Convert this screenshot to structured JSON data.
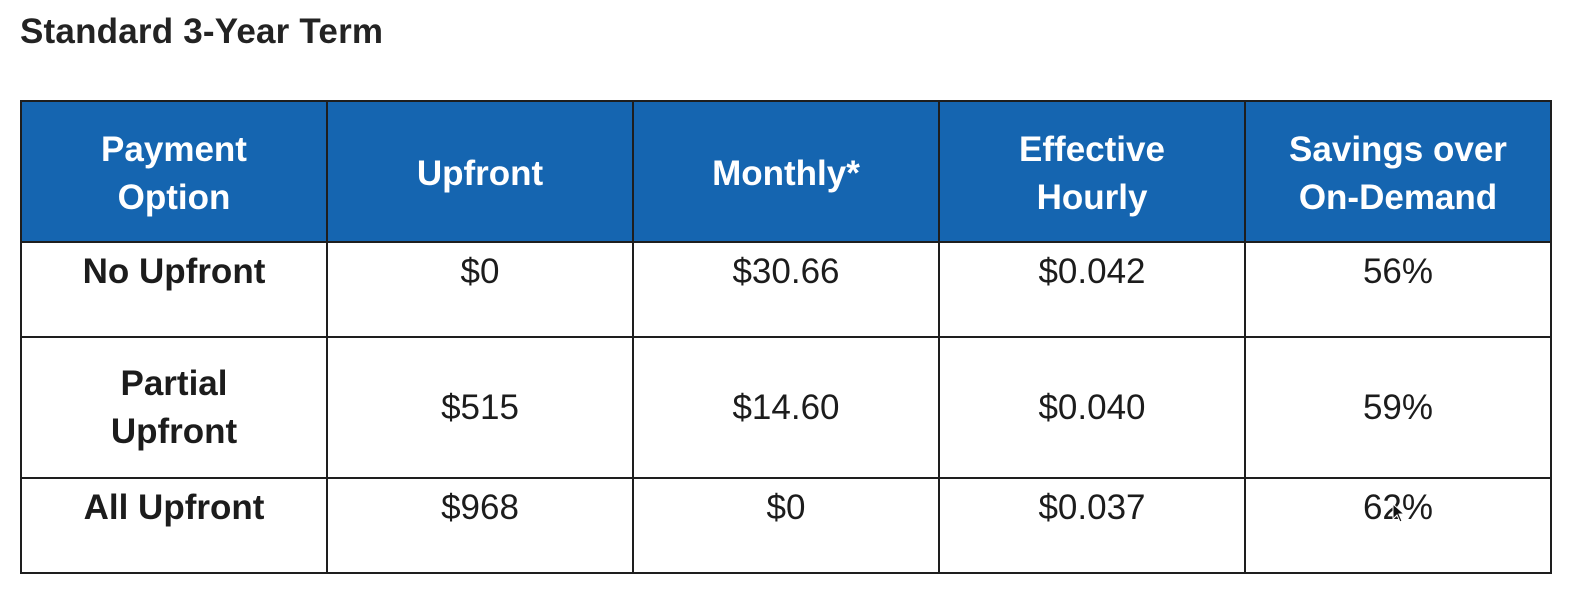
{
  "page": {
    "title": "Standard 3-Year Term"
  },
  "table": {
    "headers": [
      {
        "line1": "Payment",
        "line2": "Option"
      },
      {
        "line1": "Upfront",
        "line2": ""
      },
      {
        "line1": "Monthly*",
        "line2": ""
      },
      {
        "line1": "Effective",
        "line2": "Hourly"
      },
      {
        "line1": "Savings over",
        "line2": "On-Demand"
      }
    ],
    "rows": [
      {
        "payment_option": {
          "line1": "No Upfront",
          "line2": ""
        },
        "upfront": "$0",
        "monthly": "$30.66",
        "effective_hourly": "$0.042",
        "savings": "56%"
      },
      {
        "payment_option": {
          "line1": "Partial",
          "line2": "Upfront"
        },
        "upfront": "$515",
        "monthly": "$14.60",
        "effective_hourly": "$0.040",
        "savings": "59%"
      },
      {
        "payment_option": {
          "line1": "All Upfront",
          "line2": ""
        },
        "upfront": "$968",
        "monthly": "$0",
        "effective_hourly": "$0.037",
        "savings": "62%"
      }
    ]
  },
  "colors": {
    "header_background": "#1565b0",
    "header_text": "#ffffff",
    "border": "#1e1e1e",
    "body_text": "#1c1c1c"
  },
  "icons": {
    "cursor": "mouse-pointer-icon"
  }
}
